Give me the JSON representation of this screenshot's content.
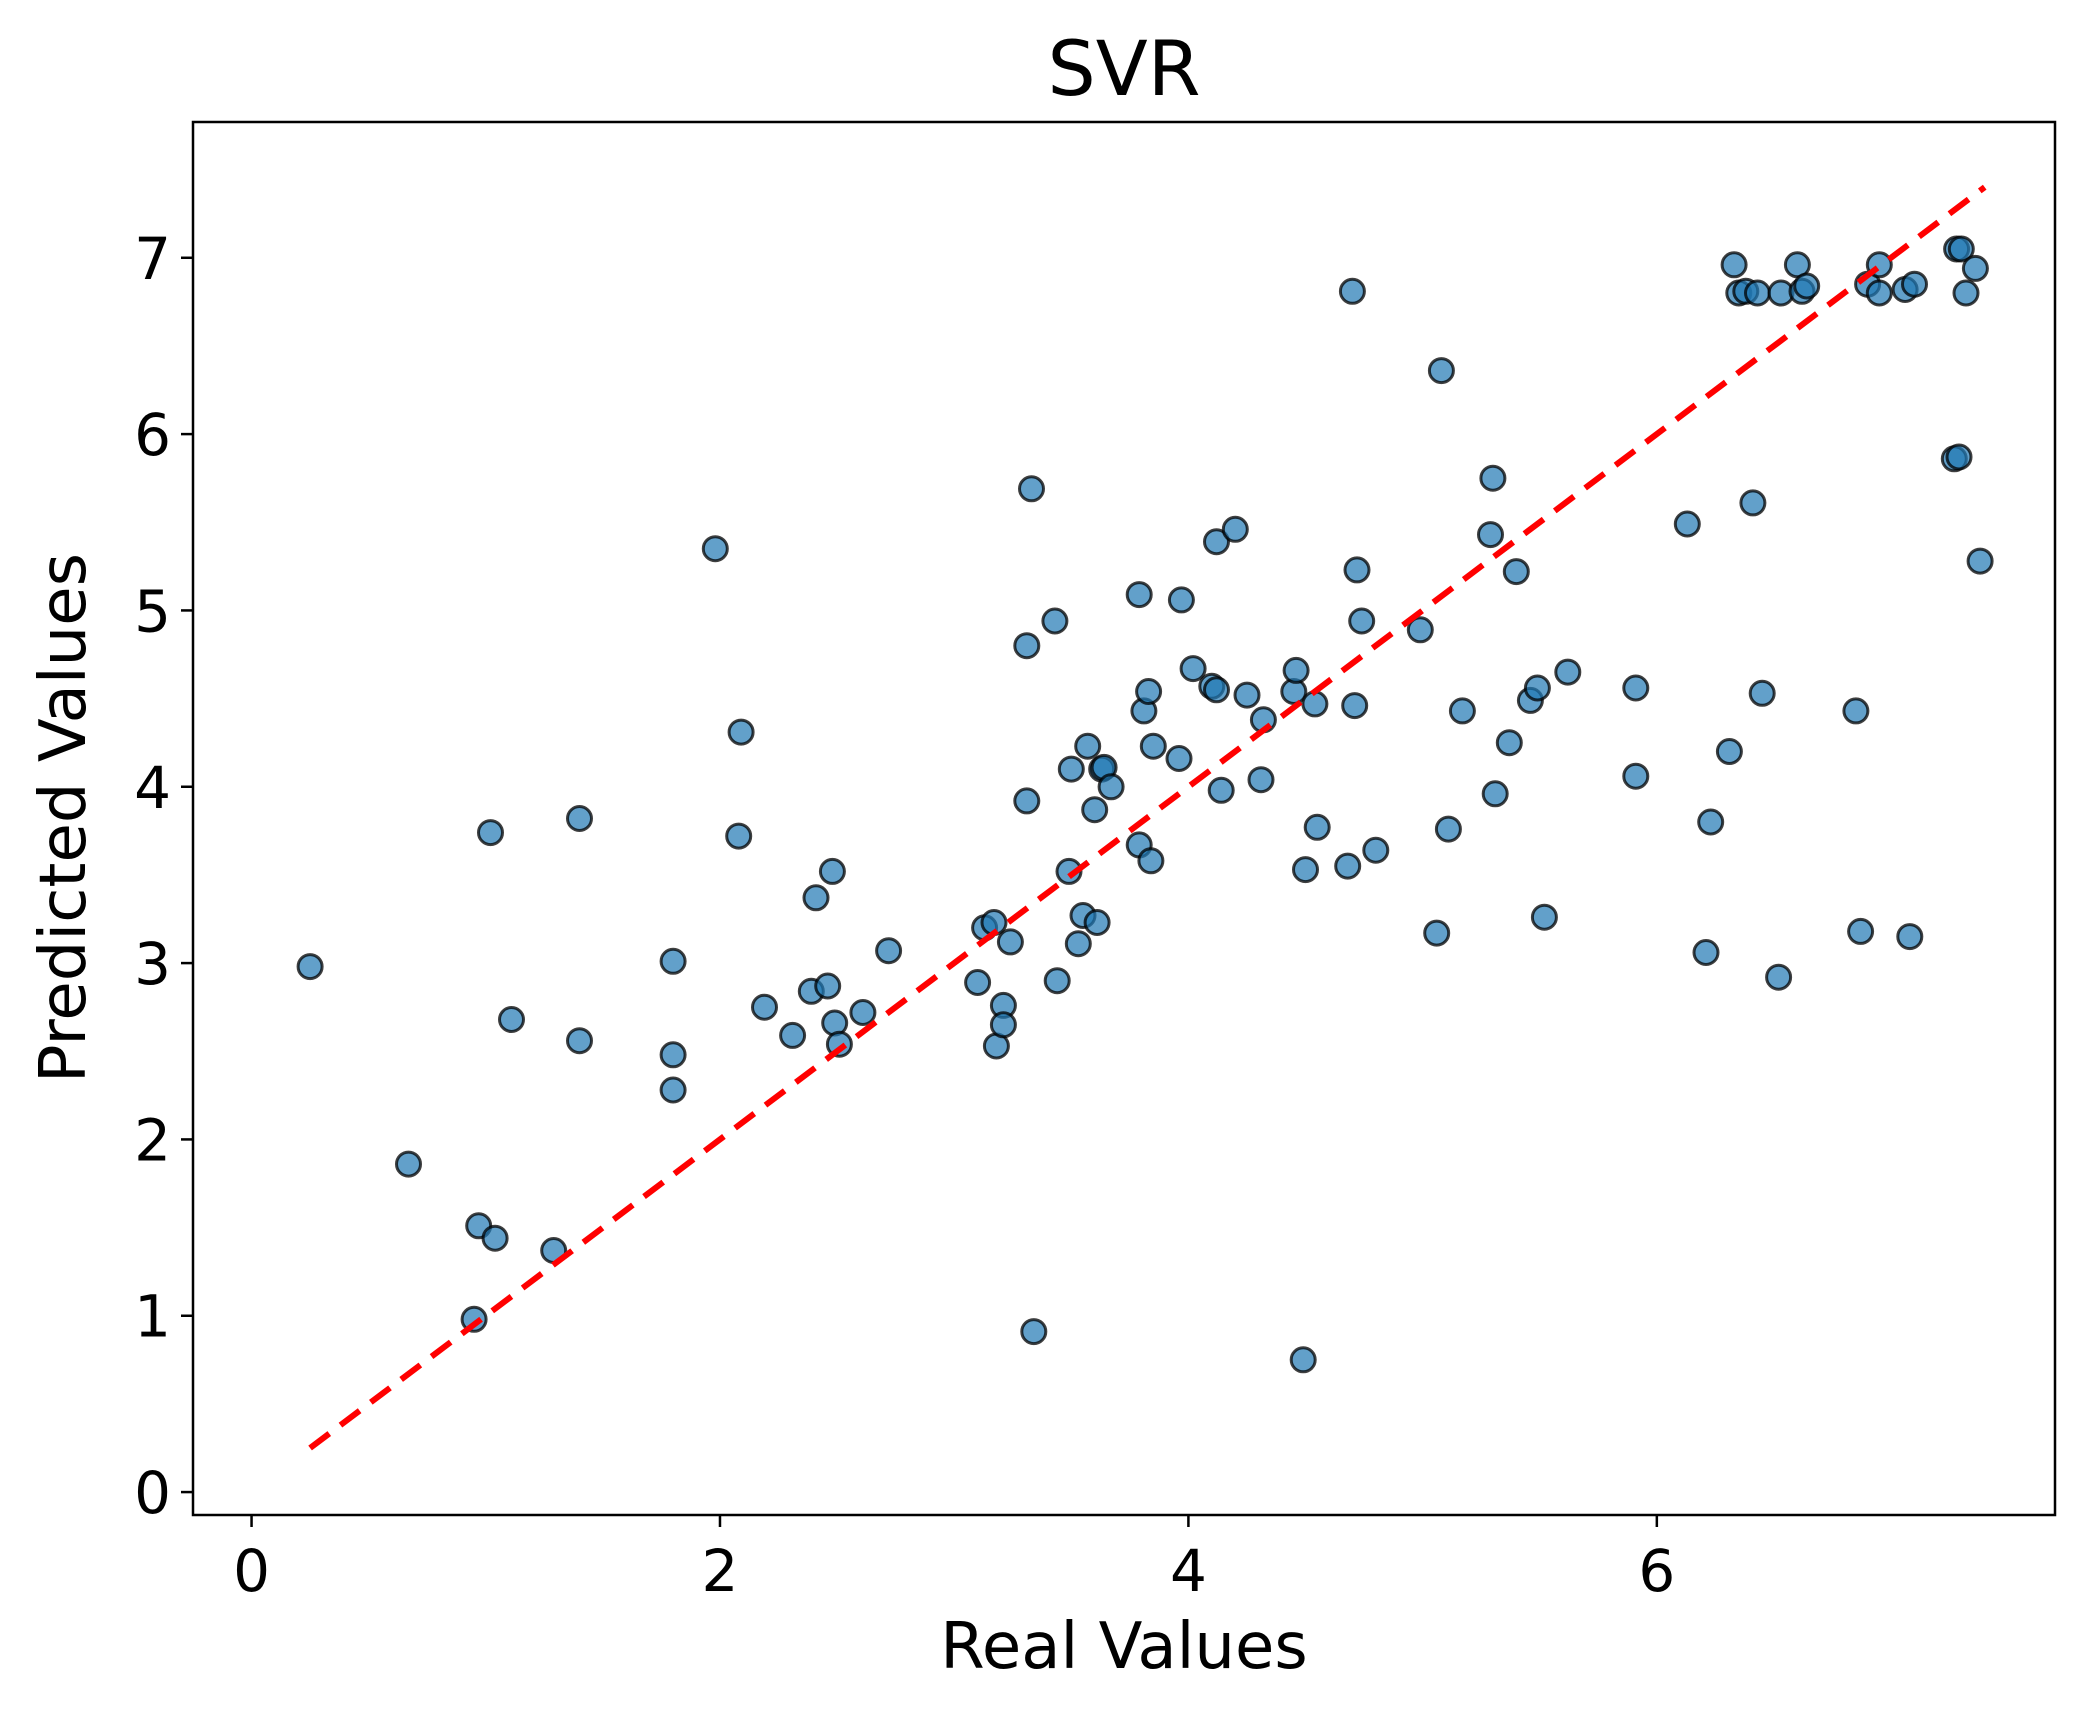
{
  "chart_data": {
    "type": "scatter",
    "title": "SVR",
    "xlabel": "Real Values",
    "ylabel": "Predicted Values",
    "xlim": [
      -0.25,
      7.7
    ],
    "ylim": [
      -0.13,
      7.77
    ],
    "xticks": [
      0,
      2,
      4,
      6
    ],
    "yticks": [
      0,
      1,
      2,
      3,
      4,
      5,
      6,
      7
    ],
    "grid": false,
    "legend": "none",
    "colors": {
      "point_fill": "#1f77b4",
      "point_edge": "#000000",
      "fit_line": "#ff0000"
    },
    "fit_line": {
      "x": [
        0.25,
        7.4
      ],
      "y": [
        0.25,
        7.4
      ]
    },
    "series": [
      {
        "x": [
          0.25,
          0.67,
          0.95,
          0.97,
          1.02,
          1.04,
          1.11,
          1.29,
          1.4,
          1.4,
          1.8,
          1.8,
          1.8,
          1.98,
          2.08,
          2.09,
          2.19,
          2.31,
          2.39,
          2.41,
          2.46,
          2.48,
          2.49,
          2.51,
          2.61,
          2.72,
          3.1,
          3.13,
          3.17,
          3.18,
          3.21,
          3.21,
          3.24,
          3.31,
          3.31,
          3.33,
          3.34,
          3.43,
          3.44,
          3.49,
          3.5,
          3.53,
          3.55,
          3.57,
          3.6,
          3.61,
          3.63,
          3.64,
          3.67,
          3.79,
          3.79,
          3.81,
          3.83,
          3.84,
          3.85,
          3.96,
          3.97,
          4.02,
          4.1,
          4.12,
          4.12,
          4.14,
          4.2,
          4.25,
          4.31,
          4.32,
          4.45,
          4.46,
          4.49,
          4.5,
          4.54,
          4.55,
          4.68,
          4.7,
          4.71,
          4.72,
          4.74,
          4.8,
          4.99,
          5.06,
          5.08,
          5.11,
          5.17,
          5.29,
          5.3,
          5.31,
          5.37,
          5.4,
          5.46,
          5.49,
          5.52,
          5.62,
          5.91,
          5.91,
          6.13,
          6.21,
          6.23,
          6.31,
          6.33,
          6.35,
          6.38,
          6.41,
          6.43,
          6.45,
          6.52,
          6.53,
          6.6,
          6.62,
          6.64,
          6.85,
          6.87,
          6.9,
          6.95,
          6.95,
          7.06,
          7.08,
          7.1,
          7.27,
          7.28,
          7.29,
          7.3,
          7.32,
          7.36,
          7.38
        ],
        "y": [
          2.98,
          1.86,
          0.98,
          1.51,
          3.74,
          1.44,
          2.68,
          1.37,
          3.82,
          2.56,
          3.01,
          2.48,
          2.28,
          5.35,
          3.72,
          4.31,
          2.75,
          2.59,
          2.84,
          3.37,
          2.87,
          3.52,
          2.66,
          2.54,
          2.72,
          3.07,
          2.89,
          3.2,
          3.23,
          2.53,
          2.76,
          2.65,
          3.12,
          4.8,
          3.92,
          5.69,
          0.91,
          4.94,
          2.9,
          3.52,
          4.1,
          3.11,
          3.27,
          4.23,
          3.87,
          3.23,
          4.1,
          4.11,
          4.0,
          3.67,
          5.09,
          4.43,
          4.54,
          3.58,
          4.23,
          4.16,
          5.06,
          4.67,
          4.57,
          4.55,
          5.39,
          3.98,
          5.46,
          4.52,
          4.04,
          4.38,
          4.54,
          4.66,
          0.75,
          3.53,
          4.47,
          3.77,
          3.55,
          6.81,
          4.46,
          5.23,
          4.94,
          3.64,
          4.89,
          3.17,
          6.36,
          3.76,
          4.43,
          5.43,
          5.75,
          3.96,
          4.25,
          5.22,
          4.49,
          4.56,
          3.26,
          4.65,
          4.56,
          4.06,
          5.49,
          3.06,
          3.8,
          4.2,
          6.96,
          6.8,
          6.81,
          5.61,
          6.8,
          4.53,
          2.92,
          6.8,
          6.96,
          6.81,
          6.84,
          4.43,
          3.18,
          6.85,
          6.8,
          6.96,
          6.82,
          3.15,
          6.85,
          5.86,
          7.05,
          5.87,
          7.05,
          6.8,
          6.94,
          5.28
        ]
      }
    ]
  }
}
